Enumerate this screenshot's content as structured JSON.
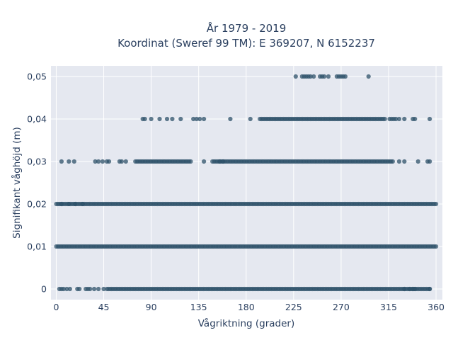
{
  "chart_data": {
    "type": "scatter",
    "title_line1": "År 1979 - 2019",
    "title_line2": "Koordinat (Sweref 99 TM): E 369207, N 6152237",
    "xlabel": "Vågriktning (grader)",
    "ylabel": "Signifikant våghöjd (m)",
    "xlim": [
      -5,
      366
    ],
    "ylim": [
      -0.0025,
      0.0525
    ],
    "x_ticks": [
      0,
      45,
      90,
      135,
      180,
      225,
      270,
      315,
      360
    ],
    "x_tick_labels": [
      "0",
      "45",
      "90",
      "135",
      "180",
      "225",
      "270",
      "315",
      "360"
    ],
    "y_ticks": [
      0,
      0.01,
      0.02,
      0.03,
      0.04,
      0.05
    ],
    "y_tick_labels": [
      "0",
      "0,01",
      "0,02",
      "0,03",
      "0,04",
      "0,05"
    ],
    "grid": true,
    "marker_color": "#2e5169",
    "plot_background": "#e5e8f0",
    "series": [
      {
        "height": 0,
        "dense_ranges": [
          [
            48,
            355
          ]
        ],
        "isolated_x": [
          3,
          5,
          7,
          10,
          13,
          20,
          22,
          28,
          30,
          32,
          36,
          40,
          45,
          330,
          335,
          338,
          340,
          354
        ]
      },
      {
        "height": 0.01,
        "dense_ranges": [
          [
            0,
            360
          ]
        ],
        "isolated_x": []
      },
      {
        "height": 0.02,
        "dense_ranges": [
          [
            0,
            360
          ]
        ],
        "isolated_x": [
          5,
          12,
          18,
          25
        ]
      },
      {
        "height": 0.03,
        "dense_ranges": [
          [
            75,
            128
          ],
          [
            148,
            320
          ]
        ],
        "isolated_x": [
          5,
          12,
          17,
          37,
          40,
          44,
          48,
          50,
          60,
          62,
          66,
          140,
          155,
          158,
          325,
          330,
          343,
          352,
          354
        ]
      },
      {
        "height": 0.04,
        "dense_ranges": [
          [
            193,
            312
          ]
        ],
        "isolated_x": [
          82,
          84,
          90,
          98,
          105,
          110,
          118,
          130,
          133,
          136,
          140,
          165,
          184,
          316,
          318,
          320,
          322,
          325,
          330,
          338,
          340,
          354
        ]
      },
      {
        "height": 0.05,
        "isolated_x": [
          227,
          233,
          235,
          237,
          239,
          241,
          244,
          250,
          252,
          254,
          258,
          266,
          268,
          270,
          272,
          274,
          296
        ]
      }
    ]
  }
}
